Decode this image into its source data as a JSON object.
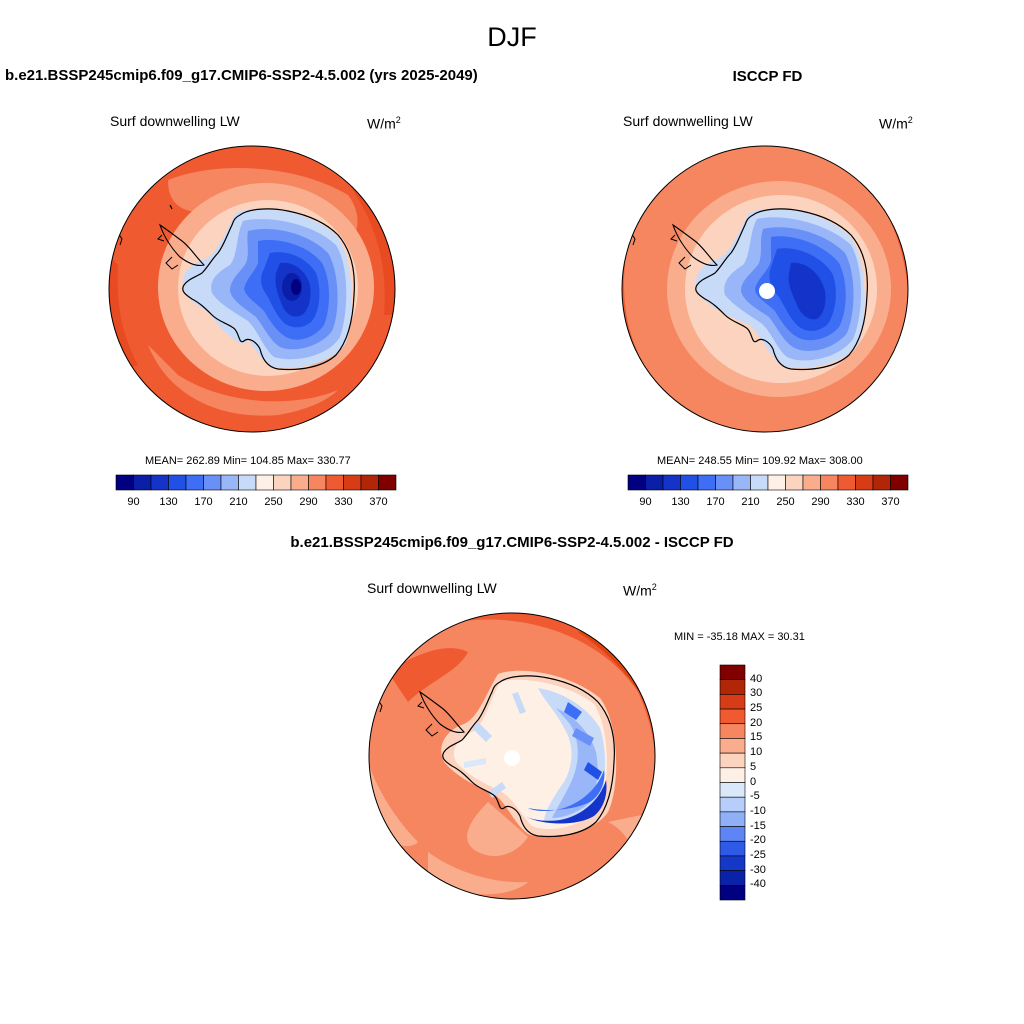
{
  "season": "DJF",
  "panels": {
    "case": {
      "title": "b.e21.BSSP245cmip6.f09_g17.CMIP6-SSP2-4.5.002 (yrs 2025-2049)",
      "variable": "Surf downwelling LW",
      "units_base": "W/m",
      "units_exp": "2",
      "stats": "MEAN= 262.89  Min= 104.85  Max= 330.77"
    },
    "obs": {
      "title": "ISCCP FD",
      "variable": "Surf downwelling LW",
      "units_base": "W/m",
      "units_exp": "2",
      "stats": "MEAN= 248.55  Min= 109.92  Max= 308.00"
    },
    "diff": {
      "title": "b.e21.BSSP245cmip6.f09_g17.CMIP6-SSP2-4.5.002 - ISCCP FD",
      "variable": "Surf downwelling LW",
      "units_base": "W/m",
      "units_exp": "2",
      "stats": "MIN = -35.18 MAX =  30.31"
    }
  },
  "colorbar_main": {
    "colors": [
      "#000080",
      "#0a1ea8",
      "#1433c8",
      "#2150e6",
      "#3d6ef5",
      "#6890f7",
      "#99b6f8",
      "#c7daf8",
      "#fff0e6",
      "#fcd3be",
      "#f9ad8d",
      "#f58660",
      "#f05a30",
      "#d83c16",
      "#b02606",
      "#800000"
    ],
    "labels": [
      "90",
      "130",
      "170",
      "210",
      "250",
      "290",
      "330",
      "370"
    ]
  },
  "colorbar_diff": {
    "colors": [
      "#800000",
      "#b02606",
      "#d83c16",
      "#f05a30",
      "#f58660",
      "#f9ad8d",
      "#fcd3be",
      "#fff0e6",
      "#dbe8fa",
      "#b8cefa",
      "#8fb0f6",
      "#5d85f3",
      "#2f5ae8",
      "#1638c8",
      "#0a22a8",
      "#000080"
    ],
    "labels": [
      "40",
      "30",
      "25",
      "20",
      "15",
      "10",
      "5",
      "0",
      "-5",
      "-10",
      "-15",
      "-20",
      "-25",
      "-30",
      "-40"
    ]
  }
}
